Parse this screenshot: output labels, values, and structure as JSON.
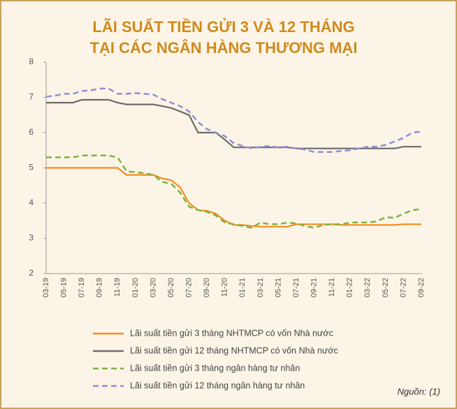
{
  "chart_data": {
    "type": "line",
    "title": [
      "LÃI SUẤT TIỀN GỬI 3 VÀ 12 THÁNG",
      "TẠI CÁC NGÂN HÀNG THƯƠNG MẠI"
    ],
    "categories": [
      "03-19",
      null,
      "05-19",
      null,
      "07-19",
      null,
      "09-19",
      null,
      "11-19",
      null,
      "01-20",
      null,
      "03-20",
      null,
      "05-20",
      null,
      "07-20",
      null,
      "09-20",
      null,
      "11-20",
      null,
      "01-21",
      null,
      "03-21",
      null,
      "05-21",
      null,
      "07-21",
      null,
      "09-21",
      null,
      "11-21",
      null,
      "01-22",
      null,
      "03-22",
      null,
      "05-22",
      null,
      "07-22",
      null,
      "09-22"
    ],
    "ylim": [
      2,
      8
    ],
    "yticks": [
      2,
      3,
      4,
      5,
      6,
      7,
      8
    ],
    "grid": false,
    "series": [
      {
        "name": "Lãi suất tiền gửi 3 tháng NHTMCP có vốn Nhà nước",
        "color": "#f28c1e",
        "dashed": false,
        "values": [
          5,
          5,
          5,
          5,
          5,
          5,
          5,
          5,
          5,
          4.8,
          4.8,
          4.8,
          4.8,
          4.7,
          4.65,
          4.45,
          4.0,
          3.8,
          3.78,
          3.7,
          3.5,
          3.38,
          3.38,
          3.35,
          3.33,
          3.33,
          3.33,
          3.33,
          3.4,
          3.4,
          3.4,
          3.4,
          3.4,
          3.38,
          3.38,
          3.38,
          3.38,
          3.38,
          3.38,
          3.38,
          3.4,
          3.4,
          3.4
        ]
      },
      {
        "name": "Lãi suất tiền gửi 12 tháng NHTMCP có vốn Nhà nước",
        "color": "#6b6b6b",
        "dashed": false,
        "values": [
          6.85,
          6.85,
          6.85,
          6.85,
          6.93,
          6.93,
          6.93,
          6.93,
          6.85,
          6.8,
          6.8,
          6.8,
          6.8,
          6.75,
          6.7,
          6.6,
          6.5,
          6.0,
          6.0,
          6.0,
          5.8,
          5.58,
          5.58,
          5.58,
          5.58,
          5.58,
          5.58,
          5.58,
          5.55,
          5.55,
          5.55,
          5.55,
          5.55,
          5.55,
          5.55,
          5.55,
          5.55,
          5.55,
          5.55,
          5.55,
          5.6,
          5.6,
          5.6
        ]
      },
      {
        "name": "Lãi suất tiền gửi 3 tháng ngân hàng tư nhân",
        "color": "#7cb342",
        "dashed": true,
        "values": [
          5.3,
          5.3,
          5.3,
          5.3,
          5.35,
          5.35,
          5.35,
          5.35,
          5.3,
          4.9,
          4.88,
          4.85,
          4.8,
          4.6,
          4.55,
          4.3,
          3.9,
          3.8,
          3.75,
          3.65,
          3.45,
          3.4,
          3.35,
          3.3,
          3.45,
          3.4,
          3.4,
          3.45,
          3.42,
          3.35,
          3.3,
          3.38,
          3.4,
          3.4,
          3.45,
          3.45,
          3.45,
          3.48,
          3.6,
          3.58,
          3.7,
          3.8,
          3.83
        ]
      },
      {
        "name": "Lãi suất tiền gửi 12 tháng ngân hàng tư nhân",
        "color": "#8e8ed6",
        "dashed": true,
        "values": [
          7.02,
          7.05,
          7.1,
          7.1,
          7.18,
          7.2,
          7.25,
          7.25,
          7.1,
          7.1,
          7.12,
          7.1,
          7.08,
          6.95,
          6.85,
          6.75,
          6.6,
          6.3,
          6.1,
          6.0,
          5.9,
          5.7,
          5.62,
          5.55,
          5.6,
          5.62,
          5.58,
          5.6,
          5.55,
          5.52,
          5.45,
          5.45,
          5.45,
          5.48,
          5.5,
          5.55,
          5.6,
          5.6,
          5.65,
          5.75,
          5.85,
          6.0,
          6.03
        ]
      }
    ],
    "source": "Nguồn: (1)"
  }
}
